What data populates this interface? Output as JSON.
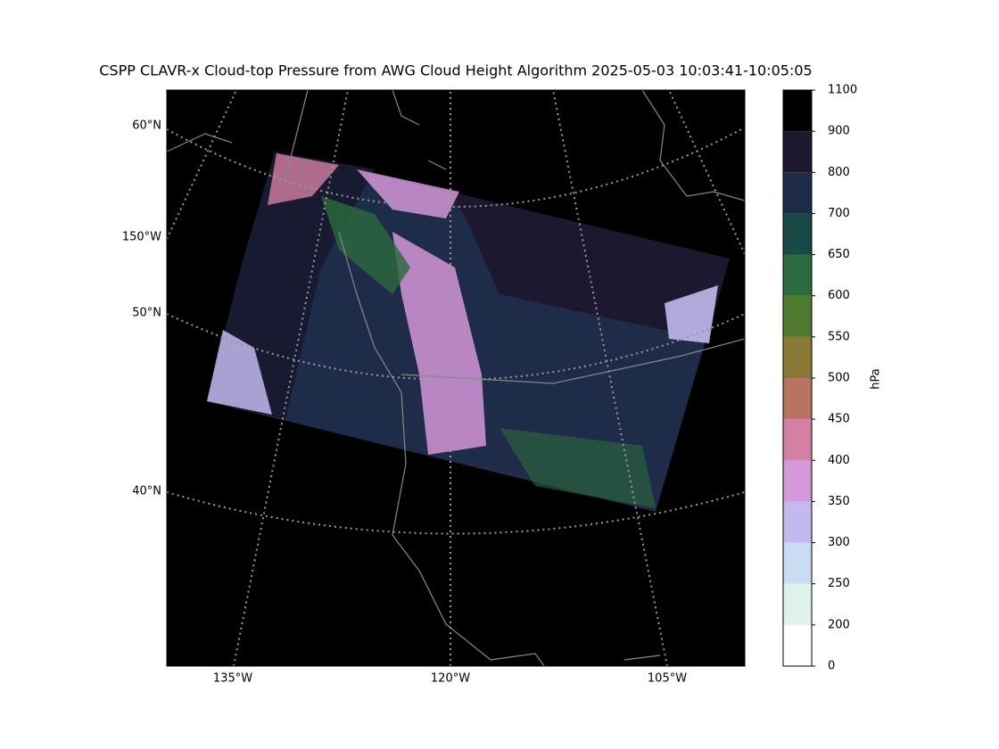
{
  "title": "CSPP CLAVR-x Cloud-top Pressure from AWG Cloud Height Algorithm 2025-05-03 10:03:41-10:05:05",
  "map": {
    "left_labels": [
      "60°N",
      "150°W",
      "50°N",
      "40°N"
    ],
    "bottom_labels": [
      "135°W",
      "120°W",
      "105°W"
    ]
  },
  "colorbar": {
    "label": "hPa",
    "ticks": [
      0,
      200,
      250,
      300,
      350,
      400,
      450,
      500,
      550,
      600,
      650,
      700,
      800,
      900,
      1100
    ],
    "colors": [
      "#ffffff",
      "#dff2ec",
      "#c6ddf2",
      "#c4b9ef",
      "#d497d8",
      "#d47fa4",
      "#b87461",
      "#8a7a35",
      "#4e7a2f",
      "#2b6a3c",
      "#1a4a48",
      "#1e2c4a",
      "#1d1730",
      "#000000"
    ]
  }
}
